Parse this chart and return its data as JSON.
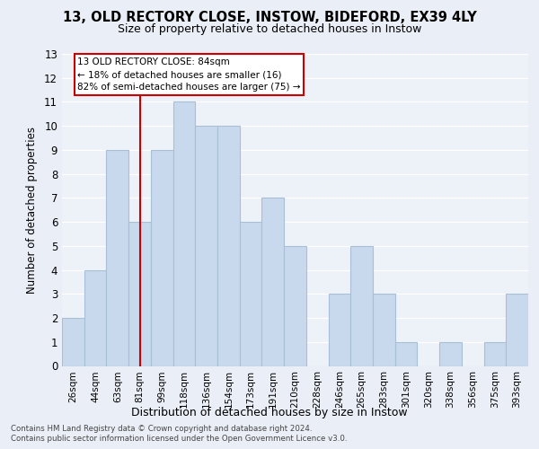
{
  "title1": "13, OLD RECTORY CLOSE, INSTOW, BIDEFORD, EX39 4LY",
  "title2": "Size of property relative to detached houses in Instow",
  "xlabel": "Distribution of detached houses by size in Instow",
  "ylabel": "Number of detached properties",
  "categories": [
    "26sqm",
    "44sqm",
    "63sqm",
    "81sqm",
    "99sqm",
    "118sqm",
    "136sqm",
    "154sqm",
    "173sqm",
    "191sqm",
    "210sqm",
    "228sqm",
    "246sqm",
    "265sqm",
    "283sqm",
    "301sqm",
    "320sqm",
    "338sqm",
    "356sqm",
    "375sqm",
    "393sqm"
  ],
  "values": [
    2,
    4,
    9,
    6,
    9,
    11,
    10,
    10,
    6,
    7,
    5,
    0,
    3,
    5,
    3,
    1,
    0,
    1,
    0,
    1,
    3
  ],
  "bar_color": "#c9d9ed",
  "bar_edge_color": "#a8bfd6",
  "vline_x_index": 3,
  "vline_color": "#cc0000",
  "annotation_text": "13 OLD RECTORY CLOSE: 84sqm\n← 18% of detached houses are smaller (16)\n82% of semi-detached houses are larger (75) →",
  "annotation_box_color": "white",
  "annotation_box_edge": "#cc0000",
  "ylim": [
    0,
    13
  ],
  "yticks": [
    0,
    1,
    2,
    3,
    4,
    5,
    6,
    7,
    8,
    9,
    10,
    11,
    12,
    13
  ],
  "footer1": "Contains HM Land Registry data © Crown copyright and database right 2024.",
  "footer2": "Contains public sector information licensed under the Open Government Licence v3.0.",
  "bg_color": "#eaeff7",
  "plot_bg_color": "#edf1f8",
  "grid_color": "#ffffff"
}
